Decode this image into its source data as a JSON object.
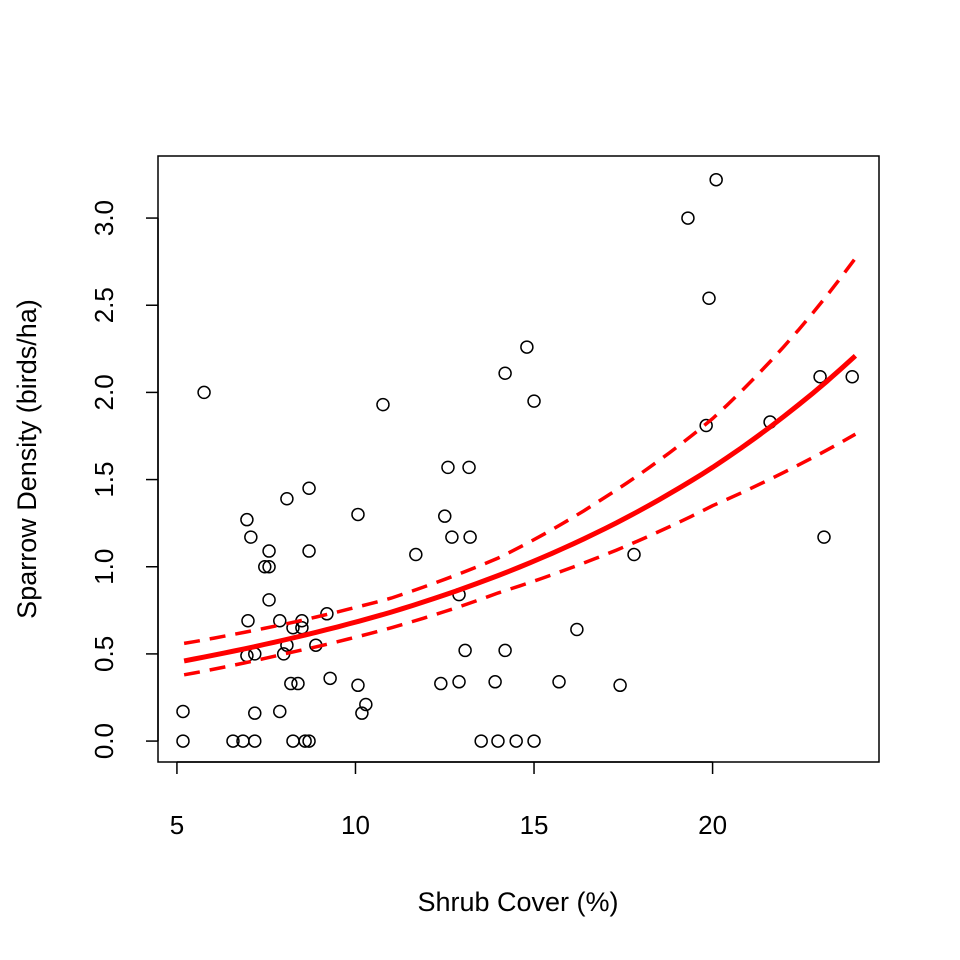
{
  "chart_data": {
    "type": "scatter",
    "title": "",
    "xlabel": "Shrub Cover (%)",
    "ylabel": "Sparrow Density (birds/ha)",
    "xlim": [
      4.47,
      24.66
    ],
    "ylim": [
      -0.12,
      3.356
    ],
    "xticks": [
      5,
      10,
      15,
      20
    ],
    "xtick_labels": [
      "5",
      "10",
      "15",
      "20"
    ],
    "yticks": [
      0,
      0.5,
      1,
      1.5,
      2,
      2.5,
      3
    ],
    "ytick_labels": [
      "0.0",
      "0.5",
      "1.0",
      "1.5",
      "2.0",
      "2.5",
      "3.0"
    ],
    "grid": false,
    "colors": {
      "points": "#000000",
      "fit": "#ff0000",
      "ci": "#ff0000"
    },
    "points": [
      [
        5.17,
        0.17
      ],
      [
        5.17,
        0
      ],
      [
        5.76,
        2.0
      ],
      [
        6.57,
        0
      ],
      [
        6.85,
        0
      ],
      [
        6.96,
        1.27
      ],
      [
        7.07,
        1.17
      ],
      [
        6.99,
        0.69
      ],
      [
        6.96,
        0.49
      ],
      [
        7.18,
        0.5
      ],
      [
        7.18,
        0.16
      ],
      [
        7.18,
        0
      ],
      [
        7.46,
        1.0
      ],
      [
        7.58,
        1.09
      ],
      [
        7.58,
        1.0
      ],
      [
        7.58,
        0.81
      ],
      [
        7.88,
        0.69
      ],
      [
        7.88,
        0.17
      ],
      [
        8.08,
        1.39
      ],
      [
        7.99,
        0.5
      ],
      [
        8.08,
        0.55
      ],
      [
        8.19,
        0.33
      ],
      [
        8.25,
        0.65
      ],
      [
        8.25,
        0
      ],
      [
        8.39,
        0.33
      ],
      [
        8.5,
        0.69
      ],
      [
        8.5,
        0.65
      ],
      [
        8.59,
        0
      ],
      [
        8.7,
        0
      ],
      [
        8.7,
        1.45
      ],
      [
        8.7,
        1.09
      ],
      [
        8.89,
        0.55
      ],
      [
        9.2,
        0.73
      ],
      [
        9.29,
        0.36
      ],
      [
        10.07,
        1.3
      ],
      [
        10.07,
        0.32
      ],
      [
        10.18,
        0.16
      ],
      [
        10.29,
        0.21
      ],
      [
        10.77,
        1.93
      ],
      [
        11.69,
        1.07
      ],
      [
        12.39,
        0.33
      ],
      [
        12.5,
        1.29
      ],
      [
        12.59,
        1.57
      ],
      [
        12.7,
        1.17
      ],
      [
        12.9,
        0.84
      ],
      [
        12.9,
        0.34
      ],
      [
        13.07,
        0.52
      ],
      [
        13.18,
        1.57
      ],
      [
        13.21,
        1.17
      ],
      [
        13.52,
        0
      ],
      [
        13.91,
        0.34
      ],
      [
        13.99,
        0
      ],
      [
        14.19,
        2.11
      ],
      [
        14.19,
        0.52
      ],
      [
        14.5,
        0
      ],
      [
        14.8,
        2.26
      ],
      [
        15.0,
        0
      ],
      [
        15.0,
        1.95
      ],
      [
        15.7,
        0.34
      ],
      [
        16.2,
        0.64
      ],
      [
        17.41,
        0.32
      ],
      [
        17.8,
        1.07
      ],
      [
        19.31,
        3.0
      ],
      [
        20.1,
        3.22
      ],
      [
        19.9,
        2.54
      ],
      [
        19.82,
        1.81
      ],
      [
        21.61,
        1.83
      ],
      [
        23.01,
        2.09
      ],
      [
        23.12,
        1.17
      ],
      [
        23.91,
        2.09
      ]
    ],
    "fit": {
      "name": "fitted",
      "x": [
        5.2,
        8,
        11,
        14,
        17,
        20,
        24
      ],
      "y": [
        0.46,
        0.58,
        0.74,
        0.95,
        1.22,
        1.57,
        2.21
      ]
    },
    "upper": {
      "name": "upper CI",
      "x": [
        5.2,
        8,
        11,
        14,
        17,
        20,
        24
      ],
      "y": [
        0.56,
        0.67,
        0.82,
        1.05,
        1.4,
        1.85,
        2.77
      ]
    },
    "lower": {
      "name": "lower CI",
      "x": [
        5.2,
        8,
        11,
        14,
        17,
        20,
        24
      ],
      "y": [
        0.38,
        0.5,
        0.65,
        0.85,
        1.07,
        1.35,
        1.76
      ]
    }
  }
}
